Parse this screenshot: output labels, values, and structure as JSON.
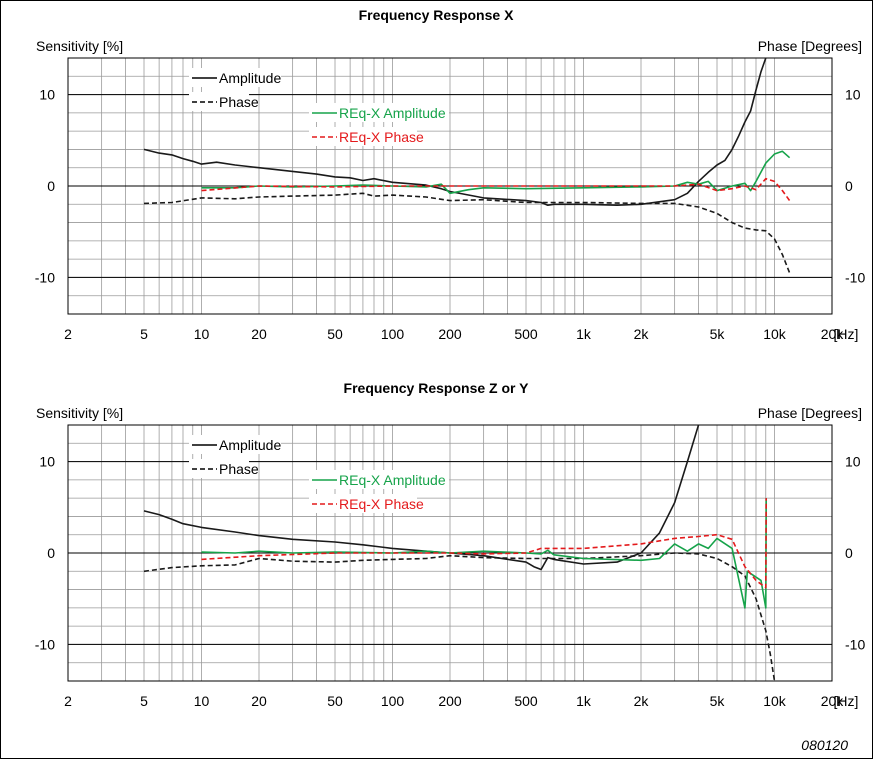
{
  "figure_id": "080120",
  "colors": {
    "amplitude": "#1a1a1a",
    "phase": "#1a1a1a",
    "req_amplitude": "#16a34a",
    "req_phase": "#e41a1c",
    "grid": "#9a9a9a",
    "frame": "#000000"
  },
  "chart_data": [
    {
      "type": "line",
      "title": "Frequency Response X",
      "ylabel_left": "Sensitivity [%]",
      "ylabel_right": "Phase [Degrees]",
      "x_scale": "log",
      "xlim": [
        2,
        20000
      ],
      "ylim": [
        -14,
        14
      ],
      "x_ticks": [
        2,
        5,
        10,
        20,
        50,
        100,
        200,
        500,
        1000,
        2000,
        5000,
        10000,
        20000
      ],
      "x_tick_labels": [
        "2",
        "5",
        "10",
        "20",
        "50",
        "100",
        "200",
        "500",
        "1k",
        "2k",
        "5k",
        "10k",
        "20k"
      ],
      "x_unit": "[Hz]",
      "y_ticks": [
        10,
        0,
        -10
      ],
      "y_tick_labels": [
        "10",
        "0",
        "-10"
      ],
      "grid": true,
      "legend_black": [
        {
          "name": "Amplitude",
          "style": "solid"
        },
        {
          "name": "Phase",
          "style": "dashed"
        }
      ],
      "legend_color": [
        {
          "name": "REq-X Amplitude",
          "style": "solid"
        },
        {
          "name": "REq-X Phase",
          "style": "dashed"
        }
      ],
      "series": [
        {
          "name": "Amplitude",
          "style": "solid",
          "points": [
            [
              5,
              4.0
            ],
            [
              6,
              3.6
            ],
            [
              7,
              3.4
            ],
            [
              8,
              3.0
            ],
            [
              9,
              2.7
            ],
            [
              10,
              2.4
            ],
            [
              12,
              2.6
            ],
            [
              15,
              2.3
            ],
            [
              20,
              2.0
            ],
            [
              30,
              1.6
            ],
            [
              40,
              1.3
            ],
            [
              50,
              1.0
            ],
            [
              60,
              0.9
            ],
            [
              70,
              0.6
            ],
            [
              80,
              0.8
            ],
            [
              100,
              0.4
            ],
            [
              150,
              0.1
            ],
            [
              180,
              -0.3
            ],
            [
              200,
              -0.6
            ],
            [
              300,
              -1.3
            ],
            [
              500,
              -1.6
            ],
            [
              600,
              -1.8
            ],
            [
              650,
              -2.1
            ],
            [
              700,
              -2.0
            ],
            [
              1000,
              -2.0
            ],
            [
              1500,
              -2.1
            ],
            [
              2000,
              -2.0
            ],
            [
              3000,
              -1.5
            ],
            [
              3500,
              -0.8
            ],
            [
              4000,
              0.5
            ],
            [
              4500,
              1.5
            ],
            [
              5000,
              2.3
            ],
            [
              5500,
              2.8
            ],
            [
              6000,
              4.0
            ],
            [
              6500,
              5.5
            ],
            [
              7000,
              7.0
            ],
            [
              7500,
              8.2
            ],
            [
              8000,
              10.5
            ],
            [
              8500,
              12.5
            ],
            [
              9000,
              14.0
            ]
          ]
        },
        {
          "name": "Phase",
          "style": "dashed",
          "points": [
            [
              5,
              -1.9
            ],
            [
              7,
              -1.8
            ],
            [
              10,
              -1.3
            ],
            [
              15,
              -1.4
            ],
            [
              20,
              -1.2
            ],
            [
              30,
              -1.1
            ],
            [
              50,
              -1.0
            ],
            [
              70,
              -0.8
            ],
            [
              80,
              -1.1
            ],
            [
              100,
              -1.0
            ],
            [
              150,
              -1.2
            ],
            [
              200,
              -1.6
            ],
            [
              300,
              -1.5
            ],
            [
              500,
              -1.8
            ],
            [
              1000,
              -1.8
            ],
            [
              2000,
              -1.9
            ],
            [
              3000,
              -1.9
            ],
            [
              4000,
              -2.3
            ],
            [
              5000,
              -3.0
            ],
            [
              6000,
              -4.0
            ],
            [
              7000,
              -4.6
            ],
            [
              8000,
              -4.8
            ],
            [
              9000,
              -4.9
            ],
            [
              10000,
              -5.8
            ],
            [
              11000,
              -7.5
            ],
            [
              12000,
              -9.5
            ]
          ]
        },
        {
          "name": "REq-X Amplitude",
          "style": "solid",
          "points": [
            [
              10,
              -0.2
            ],
            [
              15,
              -0.2
            ],
            [
              20,
              0.0
            ],
            [
              30,
              -0.1
            ],
            [
              50,
              0.0
            ],
            [
              70,
              0.1
            ],
            [
              100,
              0.0
            ],
            [
              150,
              -0.1
            ],
            [
              180,
              0.2
            ],
            [
              200,
              -0.8
            ],
            [
              250,
              -0.4
            ],
            [
              300,
              -0.2
            ],
            [
              500,
              -0.3
            ],
            [
              1000,
              -0.2
            ],
            [
              2000,
              -0.1
            ],
            [
              3000,
              0.0
            ],
            [
              3500,
              0.4
            ],
            [
              4000,
              0.2
            ],
            [
              4500,
              0.5
            ],
            [
              5000,
              -0.5
            ],
            [
              6000,
              0.0
            ],
            [
              7000,
              0.3
            ],
            [
              7500,
              -0.5
            ],
            [
              8000,
              0.5
            ],
            [
              9000,
              2.5
            ],
            [
              10000,
              3.5
            ],
            [
              11000,
              3.8
            ],
            [
              12000,
              3.1
            ]
          ]
        },
        {
          "name": "REq-X Phase",
          "style": "dashed",
          "points": [
            [
              10,
              -0.5
            ],
            [
              20,
              0.0
            ],
            [
              50,
              -0.1
            ],
            [
              100,
              0.0
            ],
            [
              200,
              0.0
            ],
            [
              500,
              0.0
            ],
            [
              1000,
              0.0
            ],
            [
              2000,
              0.0
            ],
            [
              3000,
              0.0
            ],
            [
              4000,
              0.2
            ],
            [
              5000,
              -0.5
            ],
            [
              6000,
              -0.3
            ],
            [
              7000,
              0.0
            ],
            [
              8000,
              -0.4
            ],
            [
              9000,
              0.8
            ],
            [
              10000,
              0.5
            ],
            [
              11000,
              -0.5
            ],
            [
              12000,
              -1.6
            ]
          ]
        }
      ]
    },
    {
      "type": "line",
      "title": "Frequency Response Z or Y",
      "ylabel_left": "Sensitivity [%]",
      "ylabel_right": "Phase [Degrees]",
      "x_scale": "log",
      "xlim": [
        2,
        20000
      ],
      "ylim": [
        -14,
        14
      ],
      "x_ticks": [
        2,
        5,
        10,
        20,
        50,
        100,
        200,
        500,
        1000,
        2000,
        5000,
        10000,
        20000
      ],
      "x_tick_labels": [
        "2",
        "5",
        "10",
        "20",
        "50",
        "100",
        "200",
        "500",
        "1k",
        "2k",
        "5k",
        "10k",
        "20k"
      ],
      "x_unit": "[Hz]",
      "y_ticks": [
        10,
        0,
        -10
      ],
      "y_tick_labels": [
        "10",
        "0",
        "-10"
      ],
      "grid": true,
      "legend_black": [
        {
          "name": "Amplitude",
          "style": "solid"
        },
        {
          "name": "Phase",
          "style": "dashed"
        }
      ],
      "legend_color": [
        {
          "name": "REq-X Amplitude",
          "style": "solid"
        },
        {
          "name": "REq-X Phase",
          "style": "dashed"
        }
      ],
      "series": [
        {
          "name": "Amplitude",
          "style": "solid",
          "points": [
            [
              5,
              4.6
            ],
            [
              6,
              4.2
            ],
            [
              7,
              3.7
            ],
            [
              8,
              3.2
            ],
            [
              10,
              2.8
            ],
            [
              15,
              2.3
            ],
            [
              20,
              1.9
            ],
            [
              30,
              1.5
            ],
            [
              50,
              1.2
            ],
            [
              70,
              0.9
            ],
            [
              100,
              0.5
            ],
            [
              150,
              0.2
            ],
            [
              200,
              0.0
            ],
            [
              300,
              -0.3
            ],
            [
              500,
              -1.0
            ],
            [
              550,
              -1.5
            ],
            [
              600,
              -1.8
            ],
            [
              650,
              -0.5
            ],
            [
              700,
              -0.7
            ],
            [
              1000,
              -1.2
            ],
            [
              1500,
              -1.0
            ],
            [
              2000,
              0.0
            ],
            [
              2500,
              2.2
            ],
            [
              3000,
              5.5
            ],
            [
              3500,
              10.0
            ],
            [
              4000,
              14.0
            ]
          ]
        },
        {
          "name": "Phase",
          "style": "dashed",
          "points": [
            [
              5,
              -2.0
            ],
            [
              7,
              -1.6
            ],
            [
              10,
              -1.4
            ],
            [
              15,
              -1.3
            ],
            [
              20,
              -0.6
            ],
            [
              30,
              -0.9
            ],
            [
              50,
              -1.0
            ],
            [
              70,
              -0.8
            ],
            [
              100,
              -0.7
            ],
            [
              150,
              -0.6
            ],
            [
              200,
              -0.3
            ],
            [
              300,
              -0.5
            ],
            [
              500,
              -0.6
            ],
            [
              1000,
              -0.6
            ],
            [
              2000,
              -0.3
            ],
            [
              3000,
              0.0
            ],
            [
              4000,
              -0.1
            ],
            [
              5000,
              -0.6
            ],
            [
              6000,
              -1.5
            ],
            [
              7000,
              -2.5
            ],
            [
              8000,
              -5.0
            ],
            [
              9000,
              -8.5
            ],
            [
              9500,
              -11.0
            ],
            [
              10000,
              -14.0
            ]
          ]
        },
        {
          "name": "REq-X Amplitude",
          "style": "solid",
          "points": [
            [
              10,
              0.1
            ],
            [
              15,
              0.0
            ],
            [
              20,
              0.2
            ],
            [
              30,
              0.0
            ],
            [
              50,
              0.1
            ],
            [
              100,
              0.0
            ],
            [
              150,
              0.2
            ],
            [
              200,
              0.0
            ],
            [
              300,
              0.2
            ],
            [
              500,
              0.0
            ],
            [
              600,
              -0.1
            ],
            [
              650,
              0.3
            ],
            [
              700,
              -0.2
            ],
            [
              1000,
              -0.6
            ],
            [
              2000,
              -0.8
            ],
            [
              2500,
              -0.6
            ],
            [
              3000,
              1.0
            ],
            [
              3500,
              0.2
            ],
            [
              4000,
              1.0
            ],
            [
              4500,
              0.5
            ],
            [
              5000,
              1.6
            ],
            [
              6000,
              0.5
            ],
            [
              7000,
              -6.0
            ],
            [
              7200,
              -2.0
            ],
            [
              8500,
              -3.0
            ],
            [
              9000,
              -6.0
            ],
            [
              9050,
              6.0
            ]
          ]
        },
        {
          "name": "REq-X Phase",
          "style": "dashed",
          "points": [
            [
              10,
              -0.7
            ],
            [
              20,
              -0.3
            ],
            [
              50,
              0.0
            ],
            [
              100,
              0.0
            ],
            [
              200,
              0.0
            ],
            [
              300,
              -0.1
            ],
            [
              500,
              0.0
            ],
            [
              600,
              0.5
            ],
            [
              1000,
              0.5
            ],
            [
              2000,
              1.0
            ],
            [
              3000,
              1.6
            ],
            [
              4000,
              1.8
            ],
            [
              5000,
              2.0
            ],
            [
              6000,
              1.5
            ],
            [
              7000,
              -1.5
            ],
            [
              8000,
              -3.0
            ],
            [
              9000,
              -3.8
            ],
            [
              9050,
              6.0
            ]
          ]
        }
      ]
    }
  ]
}
